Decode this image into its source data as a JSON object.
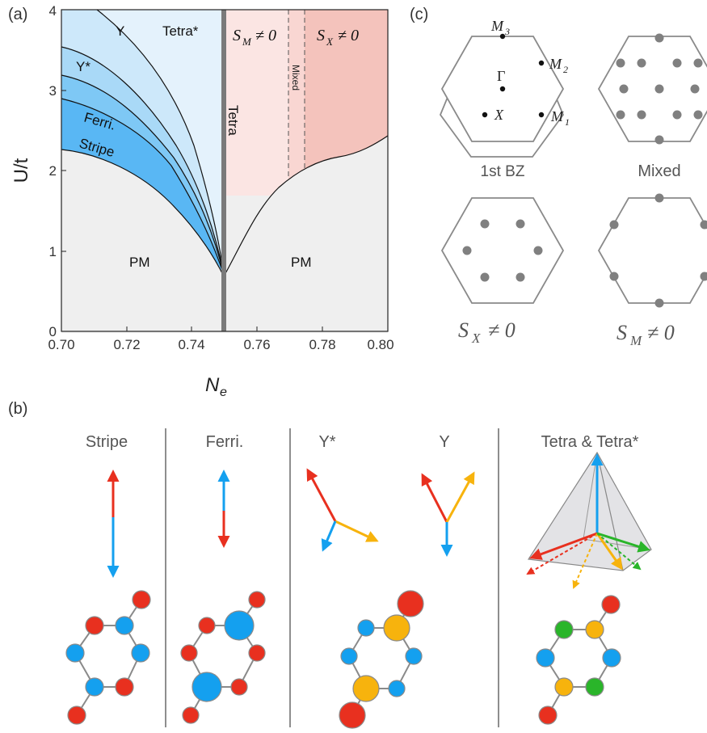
{
  "panel_a": {
    "label": "(a)",
    "ylabel": "U/t",
    "xlabel_main": "N",
    "xlabel_sub": "e",
    "xticks": [
      "0.70",
      "0.72",
      "0.74",
      "0.76",
      "0.78",
      "0.80"
    ],
    "yticks": [
      "0",
      "1",
      "2",
      "3",
      "4"
    ],
    "regions": {
      "y": "Y",
      "tetra_star": "Tetra*",
      "y_star": "Y*",
      "ferri": "Ferri.",
      "stripe": "Stripe",
      "tetra": "Tetra",
      "pm_left": "PM",
      "pm_right": "PM",
      "mixed": "Mixed",
      "sm_main": "S",
      "sm_sub": "M",
      "sx_main": "S",
      "sx_sub": "X",
      "neq_zero": "≠ 0"
    },
    "colors": {
      "pm": "#efefef",
      "stripe": "#59b7f4",
      "ferri": "#7ec8f5",
      "ystar": "#a9d9f7",
      "y": "#cde8fa",
      "tetra_star": "#e4f2fc",
      "sm": "#fbe5e3",
      "sx": "#f4c3bc",
      "tetra_line": "#7a7a7a"
    }
  },
  "panel_b": {
    "label": "(b)",
    "headers": [
      "Stripe",
      "Ferri.",
      "Y*",
      "Y",
      "Tetra & Tetra*"
    ],
    "colors": {
      "red": "#e8301f",
      "blue": "#14a0ef",
      "orange": "#f7b30d",
      "green": "#2ab52a"
    }
  },
  "panel_c": {
    "label": "(c)",
    "captions": [
      "1st BZ",
      "Mixed"
    ],
    "points": {
      "m3": "M",
      "m3_sub": "3",
      "m2": "M",
      "m2_sub": "2",
      "m1": "M",
      "m1_sub": "1",
      "gamma": "Γ",
      "x": "X"
    },
    "bottom_captions": {
      "sx_main": "S",
      "sx_sub": "X",
      "sm_main": "S",
      "sm_sub": "M",
      "neq_zero": "≠ 0"
    }
  }
}
